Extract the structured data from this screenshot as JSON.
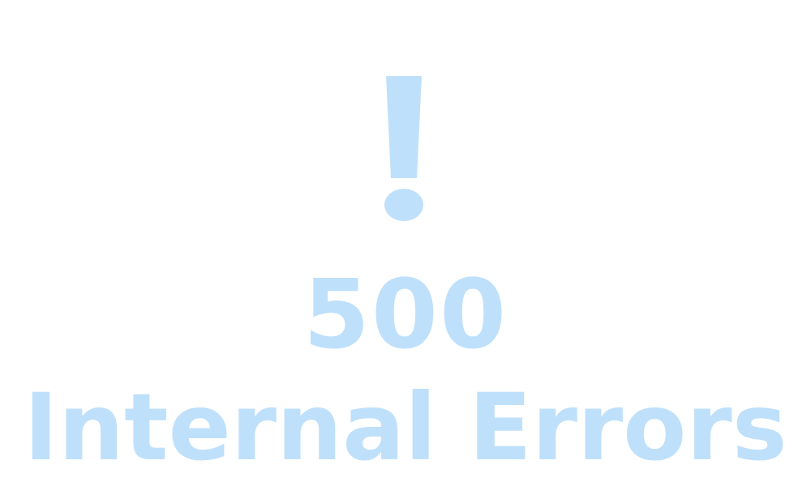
{
  "colors": {
    "text": "#bfe0fb",
    "background": "#ffffff"
  },
  "icon": "exclamation-icon",
  "error": {
    "code": "500",
    "message": "Internal Errors"
  }
}
